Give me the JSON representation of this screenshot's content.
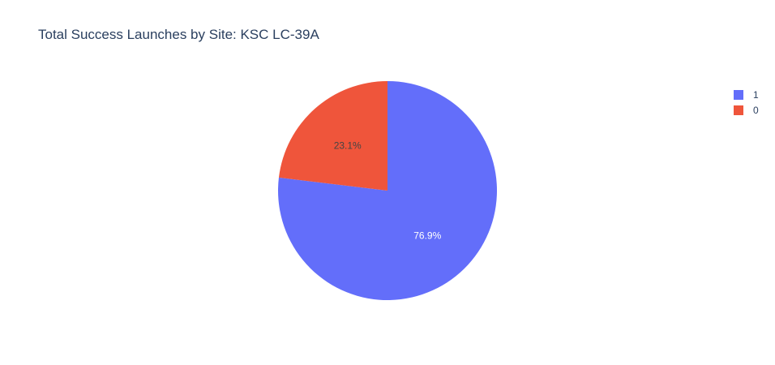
{
  "chart_data": {
    "type": "pie",
    "title": "Total Success Launches by Site: KSC LC-39A",
    "slices": [
      {
        "label": "1",
        "value": 76.9,
        "text": "76.9%",
        "color": "#636efa",
        "text_color": "#ffffff"
      },
      {
        "label": "0",
        "value": 23.1,
        "text": "23.1%",
        "color": "#ef553b",
        "text_color": "#444444"
      }
    ],
    "legend": {
      "position": "top-right",
      "entries": [
        "1",
        "0"
      ]
    },
    "direction": "clockwise",
    "start_angle": "12 o'clock"
  }
}
